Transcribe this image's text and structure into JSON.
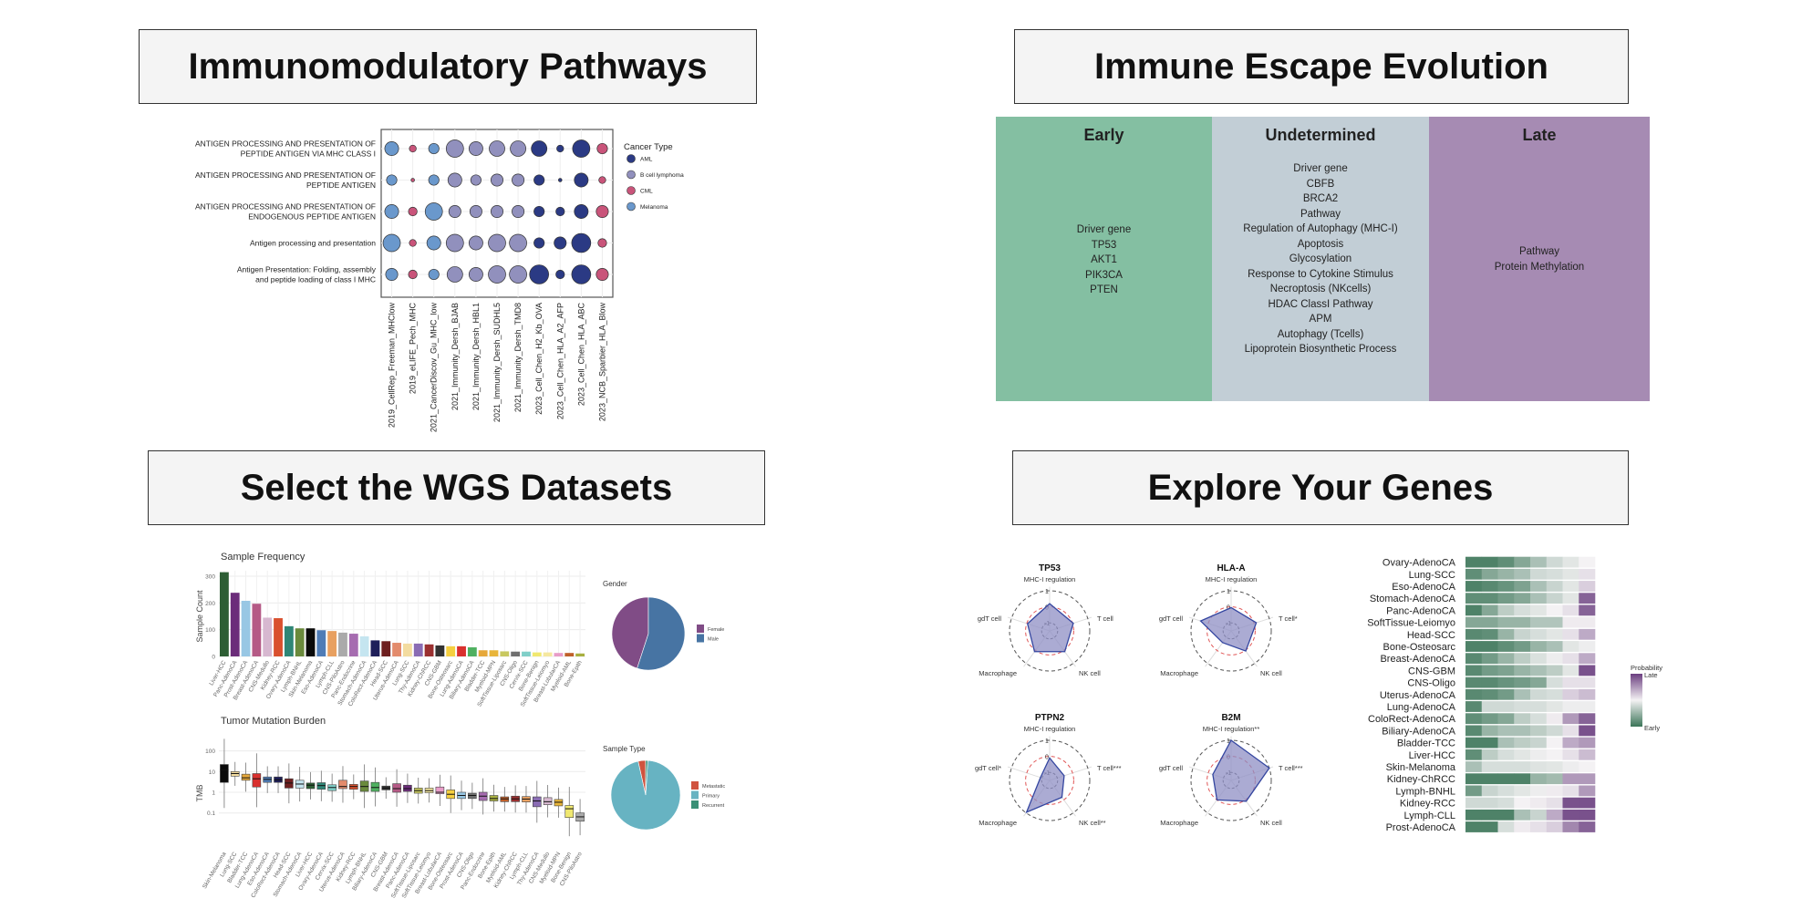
{
  "cards": {
    "immunomodulatory": {
      "title": "Immunomodulatory Pathways"
    },
    "escape": {
      "title": "Immune Escape Evolution"
    },
    "wgs": {
      "title": "Select the WGS Datasets"
    },
    "genes": {
      "title": "Explore Your Genes"
    }
  },
  "escape_table": {
    "columns": [
      {
        "header": "Early",
        "color": "#84bfa2",
        "items": [
          "Driver gene",
          "TP53",
          "AKT1",
          "PIK3CA",
          "PTEN"
        ]
      },
      {
        "header": "Undetermined",
        "color": "#c2ced6",
        "items": [
          "Driver gene",
          "CBFB",
          "BRCA2",
          "Pathway",
          "Regulation of Autophagy (MHC-I)",
          "Apoptosis",
          "Glycosylation",
          "Response to Cytokine Stimulus",
          "Necroptosis (NKcells)",
          "HDAC ClassI Pathway",
          "APM",
          "Autophagy (Tcells)",
          "Lipoprotein Biosynthetic Process"
        ]
      },
      {
        "header": "Late",
        "color": "#a68bb3",
        "items": [
          "Pathway",
          "Protein Methylation"
        ]
      }
    ]
  },
  "chart_data": [
    {
      "type": "scatter",
      "kind": "dot-plot",
      "rows": [
        "ANTIGEN PROCESSING AND PRESENTATION OF|PEPTIDE ANTIGEN VIA MHC CLASS I",
        "ANTIGEN PROCESSING AND PRESENTATION OF|PEPTIDE ANTIGEN",
        "ANTIGEN PROCESSING AND PRESENTATION OF|ENDOGENOUS PEPTIDE ANTIGEN",
        "Antigen processing and presentation",
        "Antigen Presentation: Folding, assembly|and peptide loading of class I MHC"
      ],
      "columns": [
        "2019_CellRep_Freeman_MHClow",
        "2019_eLIFE_Pech_MHC",
        "2021_CancerDiscov_Gu_MHC_low",
        "2021_Immunity_Dersh_BJAB",
        "2021_Immunity_Dersh_HBL1",
        "2021_Immunity_Dersh_SUDHL5",
        "2021_Immunity_Dersh_TMD8",
        "2023_Cell_Chen_H2_Kb_OVA",
        "2023_Cell_Chen_HLA_A2_AFP",
        "2023_Cell_Chen_HLA_ABC",
        "2023_NCB_Sparbier_HLA_Blow"
      ],
      "column_cancer_type": [
        "Melanoma",
        "CML",
        "Melanoma",
        "B cell lymphoma",
        "B cell lymphoma",
        "B cell lymphoma",
        "B cell lymphoma",
        "AML",
        "AML",
        "AML",
        "CML"
      ],
      "relative_size": [
        [
          4,
          2,
          3,
          5,
          4,
          4.5,
          4.5,
          4.5,
          2,
          5,
          3
        ],
        [
          3,
          1,
          3,
          4,
          3,
          3.5,
          3.5,
          3,
          1,
          4,
          2
        ],
        [
          4,
          2.5,
          5,
          3.5,
          3.5,
          3.5,
          3.5,
          3,
          2.5,
          4,
          3.5
        ],
        [
          5,
          2,
          4,
          5,
          4,
          5,
          5,
          3,
          3.5,
          5.5,
          2.5
        ],
        [
          3.5,
          2.5,
          3,
          4.5,
          4,
          5,
          5,
          5.5,
          2.5,
          5.5,
          3.5
        ]
      ],
      "legend": {
        "title": "Cancer Type",
        "placement": "right",
        "entries": [
          {
            "name": "AML",
            "color": "#2b3a84"
          },
          {
            "name": "B cell lymphoma",
            "color": "#9190bd"
          },
          {
            "name": "CML",
            "color": "#c9547a"
          },
          {
            "name": "Melanoma",
            "color": "#6a98cc"
          }
        ]
      },
      "grid": true
    },
    {
      "type": "bar",
      "title": "Sample Frequency",
      "ylabel": "Sample Count",
      "ylim": [
        0,
        320
      ],
      "yticks": [
        0,
        100,
        200,
        300
      ],
      "grid": true,
      "categories": [
        "Liver-HCC",
        "Panc-AdenoCA",
        "Prost-AdenoCA",
        "Breast-AdenoCA",
        "CNS-Medullo",
        "Kidney-RCC",
        "Ovary-AdenoCA",
        "Lymph-BNHL",
        "Skin-Melanoma",
        "Eso-AdenoCA",
        "Lymph-CLL",
        "CNS-PiloAstro",
        "Panc-Endocrine",
        "Stomach-AdenoCA",
        "ColoRect-AdenoCA",
        "Head-SCC",
        "Uterus-AdenoCA",
        "Lung-SCC",
        "Thy-AdenoCA",
        "Kidney-ChRCC",
        "CNS-GBM",
        "Bone-Osteosarc",
        "Lung-AdenoCA",
        "Biliary-AdenoCA",
        "Bladder-TCC",
        "Myeloid-MPN",
        "SoftTissue-Liposarc",
        "CNS-Oligo",
        "Cervix-SCC",
        "Bone-Benign",
        "SoftTissue-Leiomyo",
        "Breast-LobularCA",
        "Myeloid-AML",
        "Bone-Epith"
      ],
      "values": [
        315,
        238,
        208,
        197,
        145,
        143,
        113,
        105,
        105,
        98,
        95,
        89,
        85,
        75,
        60,
        57,
        51,
        48,
        48,
        45,
        41,
        38,
        38,
        34,
        23,
        23,
        19,
        18,
        18,
        15,
        15,
        13,
        13,
        11
      ],
      "colors": {
        "Liver-HCC": "#2d5e34",
        "Panc-AdenoCA": "#6b2c7a",
        "Prost-AdenoCA": "#98c7e4",
        "Breast-AdenoCA": "#b55a86",
        "CNS-Medullo": "#d7b8d0",
        "Kidney-RCC": "#d9502e",
        "Ovary-AdenoCA": "#2f8676",
        "Lymph-BNHL": "#6a8a3c",
        "Skin-Melanoma": "#0a0a0a",
        "Eso-AdenoCA": "#4f7cb6",
        "Lymph-CLL": "#e8a060",
        "CNS-PiloAstro": "#aaaaaa",
        "Panc-Endocrine": "#a66cb0",
        "Stomach-AdenoCA": "#c5e5f0",
        "ColoRect-AdenoCA": "#1f1f5a",
        "Head-SCC": "#6e1f1f",
        "Uterus-AdenoCA": "#e38b6c",
        "Lung-SCC": "#f3dca0",
        "Thy-AdenoCA": "#8a6cb4",
        "Kidney-ChRCC": "#9a3030",
        "CNS-GBM": "#333333",
        "Bone-Osteosarc": "#f5cf40",
        "Lung-AdenoCA": "#d9302e",
        "Biliary-AdenoCA": "#4fb060",
        "Bladder-TCC": "#e6a83a",
        "Myeloid-MPN": "#e8b53a",
        "SoftTissue-Liposarc": "#c8c860",
        "CNS-Oligo": "#707070",
        "Cervix-SCC": "#80cfc8",
        "Bone-Benign": "#f0e870",
        "SoftTissue-Leiomyo": "#f5e8a0",
        "Breast-LobularCA": "#e89cc8",
        "Myeloid-AML": "#c0602a",
        "Bone-Epith": "#a8b040"
      }
    },
    {
      "type": "pie",
      "title": "Gender",
      "slices": [
        {
          "label": "Female",
          "value": 45,
          "color": "#804c86"
        },
        {
          "label": "Male",
          "value": 55,
          "color": "#4774a3"
        }
      ],
      "legend_placement": "right"
    },
    {
      "type": "box",
      "title": "Tumor Mutation Burden",
      "ylabel": "TMB",
      "yscale": "log",
      "yticks": [
        0.1,
        1,
        10,
        100
      ],
      "grid": true,
      "categories": [
        "Skin-Melanoma",
        "Lung-SCC",
        "Bladder-TCC",
        "Lung-AdenoCA",
        "Eso-AdenoCA",
        "ColoRect-AdenoCA",
        "Head-SCC",
        "Stomach-AdenoCA",
        "Liver-HCC",
        "Ovary-AdenoCA",
        "Cervix-SCC",
        "Uterus-AdenoCA",
        "Kidney-RCC",
        "Lymph-BNHL",
        "Biliary-AdenoCA",
        "CNS-GBM",
        "Breast-AdenoCA",
        "Panc-AdenoCA",
        "SoftTissue-Liposarc",
        "SoftTissue-Leiomyo",
        "Breast-LobularCA",
        "Bone-Osteosarc",
        "Prost-AdenoCA",
        "CNS-Oligo",
        "Panc-Endocrine",
        "Bone-Epith",
        "Myeloid-AML",
        "Kidney-ChRCC",
        "Lymph-CLL",
        "Thy-AdenoCA",
        "CNS-Medullo",
        "Myeloid-MPN",
        "Bone-Benign",
        "CNS-PiloAstro"
      ],
      "q1_median_q3": [
        [
          3,
          12,
          22
        ],
        [
          6,
          8,
          10
        ],
        [
          3.8,
          5,
          7.5
        ],
        [
          1.8,
          4.5,
          8
        ],
        [
          3,
          4.2,
          5.5
        ],
        [
          3,
          4,
          5.5
        ],
        [
          1.6,
          2.8,
          4.5
        ],
        [
          1.6,
          2.5,
          3.8
        ],
        [
          1.5,
          2.2,
          2.8
        ],
        [
          1.4,
          2.1,
          2.9
        ],
        [
          1.2,
          1.7,
          2.3
        ],
        [
          1.5,
          1.9,
          3.8
        ],
        [
          1.4,
          1.9,
          2.4
        ],
        [
          1.1,
          1.9,
          3.5
        ],
        [
          1.1,
          1.7,
          3
        ],
        [
          1.3,
          1.6,
          2
        ],
        [
          1,
          1.5,
          2.6
        ],
        [
          1.1,
          1.5,
          2.2
        ],
        [
          0.9,
          1.2,
          1.6
        ],
        [
          0.95,
          1.2,
          1.6
        ],
        [
          0.85,
          1,
          1.8
        ],
        [
          0.5,
          0.8,
          1.3
        ],
        [
          0.5,
          0.7,
          1
        ],
        [
          0.5,
          0.7,
          0.9
        ],
        [
          0.4,
          0.65,
          1
        ],
        [
          0.38,
          0.5,
          0.7
        ],
        [
          0.35,
          0.48,
          0.6
        ],
        [
          0.35,
          0.48,
          0.65
        ],
        [
          0.34,
          0.47,
          0.62
        ],
        [
          0.2,
          0.38,
          0.6
        ],
        [
          0.25,
          0.35,
          0.55
        ],
        [
          0.22,
          0.33,
          0.45
        ],
        [
          0.06,
          0.16,
          0.23
        ],
        [
          0.04,
          0.065,
          0.1
        ]
      ]
    },
    {
      "type": "pie",
      "title": "Sample Type",
      "slices": [
        {
          "label": "Metastatic",
          "value": 3.5,
          "color": "#d0533f"
        },
        {
          "label": "Primary",
          "value": 95.5,
          "color": "#67b3c2"
        },
        {
          "label": "Recurrent",
          "value": 1,
          "color": "#3a9076"
        }
      ],
      "legend_placement": "right"
    },
    {
      "type": "radar",
      "radial_ticks": [
        -1,
        0,
        1
      ],
      "axes": [
        "MHC-I regulation",
        "T cell",
        "NK cell",
        "Macrophage",
        "gdT cell"
      ],
      "panels": [
        {
          "title": "TP53",
          "labels": [
            "MHC-I regulation",
            "T cell",
            "NK cell",
            "Macrophage",
            "gdT cell"
          ],
          "values": [
            0.2,
            0.05,
            0.1,
            0.1,
            -0.05
          ]
        },
        {
          "title": "HLA-A",
          "labels": [
            "MHC-I regulation",
            "T cell*",
            "NK cell",
            "Macrophage",
            "gdT cell"
          ],
          "values": [
            -0.05,
            0.15,
            0.05,
            -0.6,
            0.5
          ]
        },
        {
          "title": "PTPN2",
          "labels": [
            "MHC-I regulation",
            "T cell***",
            "NK cell**",
            "Macrophage",
            "gdT cell*"
          ],
          "values": [
            -0.1,
            -0.55,
            -0.2,
            0.95,
            -0.9
          ]
        },
        {
          "title": "B2M",
          "labels": [
            "MHC-I regulation**",
            "T cell***",
            "NK cell",
            "Macrophage",
            "gdT cell"
          ],
          "values": [
            1.0,
            1.0,
            0.1,
            0.0,
            -0.3
          ]
        }
      ],
      "fill_color": "#8f8fc4",
      "line_color": "#3446a0"
    },
    {
      "type": "heatmap",
      "legend": {
        "title": "Probability",
        "high": "Late",
        "low": "Early",
        "placement": "right"
      },
      "colors": {
        "early": "#3b7558",
        "mid": "#f4f2f4",
        "late": "#6b3f80"
      },
      "rows": [
        "Ovary-AdenoCA",
        "Lung-SCC",
        "Eso-AdenoCA",
        "Stomach-AdenoCA",
        "Panc-AdenoCA",
        "SoftTissue-Leiomyo",
        "Head-SCC",
        "Bone-Osteosarc",
        "Breast-AdenoCA",
        "CNS-GBM",
        "CNS-Oligo",
        "Uterus-AdenoCA",
        "Lung-AdenoCA",
        "ColoRect-AdenoCA",
        "Biliary-AdenoCA",
        "Bladder-TCC",
        "Liver-HCC",
        "Skin-Melanoma",
        "Kidney-ChRCC",
        "Lymph-BNHL",
        "Kidney-RCC",
        "Lymph-CLL",
        "Prost-AdenoCA"
      ],
      "late_probability": [
        [
          0.05,
          0.05,
          0.1,
          0.2,
          0.3,
          0.4,
          0.45,
          0.5
        ],
        [
          0.1,
          0.2,
          0.25,
          0.3,
          0.4,
          0.42,
          0.45,
          0.55
        ],
        [
          0.05,
          0.08,
          0.12,
          0.18,
          0.3,
          0.38,
          0.45,
          0.6
        ],
        [
          0.1,
          0.1,
          0.15,
          0.2,
          0.3,
          0.38,
          0.45,
          0.9
        ],
        [
          0.05,
          0.2,
          0.35,
          0.42,
          0.45,
          0.5,
          0.55,
          0.9
        ],
        [
          0.2,
          0.2,
          0.25,
          0.25,
          0.32,
          0.32,
          0.52,
          0.52
        ],
        [
          0.08,
          0.1,
          0.25,
          0.38,
          0.42,
          0.45,
          0.55,
          0.7
        ],
        [
          0.05,
          0.05,
          0.1,
          0.15,
          0.25,
          0.3,
          0.45,
          0.48
        ],
        [
          0.08,
          0.15,
          0.25,
          0.35,
          0.43,
          0.48,
          0.55,
          0.7
        ],
        [
          0.08,
          0.15,
          0.18,
          0.25,
          0.3,
          0.35,
          0.45,
          0.95
        ],
        [
          0.08,
          0.08,
          0.12,
          0.15,
          0.2,
          0.42,
          0.55,
          0.55
        ],
        [
          0.08,
          0.1,
          0.15,
          0.3,
          0.4,
          0.42,
          0.6,
          0.65
        ],
        [
          0.08,
          0.4,
          0.4,
          0.42,
          0.42,
          0.45,
          0.48,
          0.48
        ],
        [
          0.1,
          0.15,
          0.2,
          0.35,
          0.42,
          0.52,
          0.75,
          0.9
        ],
        [
          0.08,
          0.25,
          0.3,
          0.3,
          0.35,
          0.4,
          0.55,
          0.95
        ],
        [
          0.05,
          0.05,
          0.3,
          0.35,
          0.38,
          0.5,
          0.7,
          0.75
        ],
        [
          0.1,
          0.35,
          0.42,
          0.45,
          0.48,
          0.5,
          0.55,
          0.65
        ],
        [
          0.3,
          0.42,
          0.42,
          0.42,
          0.44,
          0.45,
          0.48,
          0.5
        ],
        [
          0.05,
          0.05,
          0.05,
          0.05,
          0.25,
          0.28,
          0.75,
          0.75
        ],
        [
          0.15,
          0.38,
          0.42,
          0.45,
          0.48,
          0.52,
          0.55,
          0.75
        ],
        [
          0.4,
          0.4,
          0.42,
          0.5,
          0.52,
          0.55,
          0.95,
          0.95
        ],
        [
          0.05,
          0.05,
          0.05,
          0.3,
          0.38,
          0.7,
          0.95,
          0.95
        ],
        [
          0.05,
          0.05,
          0.42,
          0.52,
          0.55,
          0.6,
          0.8,
          0.9
        ]
      ]
    }
  ]
}
